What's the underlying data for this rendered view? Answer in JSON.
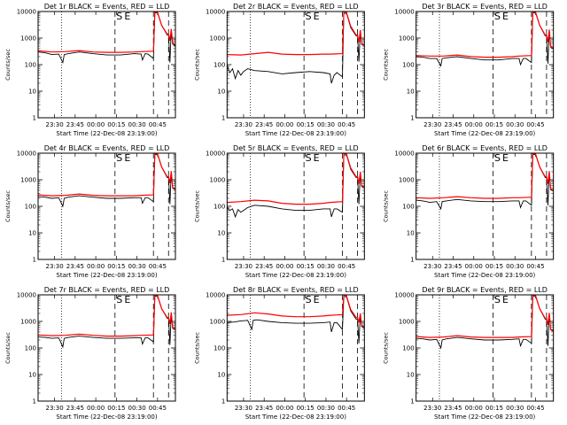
{
  "figure": {
    "y_tick_labels": [
      "1",
      "10",
      "100",
      "1000",
      "10000"
    ],
    "x_tick_labels": [
      "23:30",
      "23:45",
      "00:00",
      "00:15",
      "00:30",
      "00:45"
    ],
    "y_label": "Counts/sec",
    "x_label": "Start Time (22-Dec-08 23:19:00)",
    "markers": [
      "S",
      "E"
    ],
    "colors": {
      "events": "#000000",
      "lld": "#ff0000",
      "axes": "#000000"
    }
  },
  "chart_data": [
    {
      "type": "line",
      "title": "Det 1r BLACK = Events, RED = LLD",
      "x_range_minutes": [
        0,
        100
      ],
      "ylim": [
        1,
        10000
      ],
      "y_scale": "log",
      "series": [
        {
          "name": "Events",
          "x": [
            0,
            5,
            10,
            15,
            18,
            19,
            22,
            30,
            40,
            50,
            60,
            70,
            75,
            76,
            78,
            80,
            84,
            85,
            87,
            90,
            94,
            95,
            96,
            97,
            98,
            99,
            100
          ],
          "y": [
            300,
            280,
            240,
            250,
            120,
            240,
            260,
            300,
            260,
            230,
            230,
            260,
            250,
            150,
            260,
            250,
            170,
            9000,
            9000,
            3000,
            1300,
            1300,
            120,
            2000,
            600,
            550,
            500
          ]
        },
        {
          "name": "LLD",
          "x": [
            0,
            10,
            20,
            30,
            40,
            50,
            60,
            70,
            75,
            84,
            85,
            87,
            90,
            94,
            95,
            96,
            97,
            98,
            100
          ],
          "y": [
            330,
            300,
            310,
            340,
            300,
            290,
            290,
            300,
            310,
            320,
            10000,
            9500,
            3000,
            1400,
            1400,
            800,
            2200,
            650,
            550
          ]
        }
      ]
    },
    {
      "type": "line",
      "title": "Det 2r BLACK = Events, RED = LLD",
      "x_range_minutes": [
        0,
        100
      ],
      "ylim": [
        1,
        10000
      ],
      "y_scale": "log",
      "series": [
        {
          "name": "Events",
          "x": [
            0,
            2,
            4,
            6,
            8,
            10,
            12,
            15,
            20,
            30,
            40,
            50,
            60,
            70,
            75,
            76,
            78,
            80,
            84,
            85,
            87,
            90,
            94,
            95,
            96,
            97,
            98,
            99,
            100
          ],
          "y": [
            90,
            50,
            70,
            30,
            60,
            40,
            55,
            70,
            60,
            55,
            45,
            50,
            55,
            50,
            45,
            20,
            40,
            50,
            35,
            8500,
            8500,
            2500,
            1200,
            1200,
            130,
            1800,
            580,
            550,
            520
          ]
        },
        {
          "name": "LLD",
          "x": [
            0,
            10,
            20,
            30,
            40,
            50,
            60,
            70,
            75,
            84,
            85,
            87,
            90,
            94,
            95,
            96,
            97,
            98,
            100
          ],
          "y": [
            240,
            230,
            260,
            290,
            250,
            240,
            240,
            250,
            250,
            260,
            10000,
            9000,
            2800,
            1300,
            1300,
            700,
            2000,
            620,
            540
          ]
        }
      ]
    },
    {
      "type": "line",
      "title": "Det 3r BLACK = Events, RED = LLD",
      "x_range_minutes": [
        0,
        100
      ],
      "ylim": [
        1,
        10000
      ],
      "y_scale": "log",
      "series": [
        {
          "name": "Events",
          "x": [
            0,
            5,
            10,
            15,
            18,
            19,
            22,
            30,
            40,
            50,
            60,
            70,
            75,
            76,
            78,
            80,
            84,
            85,
            87,
            90,
            94,
            95,
            96,
            97,
            98,
            99,
            100
          ],
          "y": [
            200,
            190,
            170,
            170,
            90,
            170,
            180,
            200,
            170,
            150,
            150,
            170,
            170,
            100,
            170,
            170,
            120,
            9000,
            9000,
            3000,
            1200,
            1200,
            110,
            1900,
            450,
            420,
            400
          ]
        },
        {
          "name": "LLD",
          "x": [
            0,
            10,
            20,
            30,
            40,
            50,
            60,
            70,
            75,
            84,
            85,
            87,
            90,
            94,
            95,
            96,
            97,
            98,
            100
          ],
          "y": [
            220,
            210,
            210,
            230,
            200,
            190,
            190,
            200,
            210,
            220,
            10000,
            9500,
            3000,
            1300,
            1300,
            700,
            2100,
            480,
            420
          ]
        }
      ]
    },
    {
      "type": "line",
      "title": "Det 4r BLACK = Events, RED = LLD",
      "x_range_minutes": [
        0,
        100
      ],
      "ylim": [
        1,
        10000
      ],
      "y_scale": "log",
      "series": [
        {
          "name": "Events",
          "x": [
            0,
            5,
            10,
            15,
            18,
            19,
            22,
            30,
            40,
            50,
            60,
            70,
            75,
            76,
            78,
            80,
            84,
            85,
            87,
            90,
            94,
            95,
            96,
            97,
            98,
            99,
            100
          ],
          "y": [
            230,
            220,
            200,
            210,
            100,
            200,
            220,
            250,
            220,
            200,
            200,
            210,
            210,
            130,
            210,
            210,
            150,
            9000,
            9000,
            3000,
            1200,
            1200,
            120,
            1900,
            480,
            450,
            430
          ]
        },
        {
          "name": "LLD",
          "x": [
            0,
            10,
            20,
            30,
            40,
            50,
            60,
            70,
            75,
            84,
            85,
            87,
            90,
            94,
            95,
            96,
            97,
            98,
            100
          ],
          "y": [
            270,
            250,
            260,
            290,
            260,
            250,
            250,
            250,
            260,
            270,
            10000,
            9500,
            3000,
            1300,
            1300,
            750,
            2100,
            500,
            450
          ]
        }
      ]
    },
    {
      "type": "line",
      "title": "Det 5r BLACK = Events, RED = LLD",
      "x_range_minutes": [
        0,
        100
      ],
      "ylim": [
        1,
        10000
      ],
      "y_scale": "log",
      "series": [
        {
          "name": "Events",
          "x": [
            0,
            2,
            4,
            6,
            8,
            10,
            12,
            15,
            20,
            30,
            40,
            50,
            60,
            70,
            75,
            76,
            78,
            80,
            84,
            85,
            87,
            90,
            94,
            95,
            96,
            97,
            98,
            99,
            100
          ],
          "y": [
            90,
            70,
            80,
            40,
            75,
            60,
            70,
            90,
            110,
            100,
            80,
            70,
            70,
            80,
            80,
            40,
            80,
            80,
            60,
            8500,
            8500,
            2500,
            1200,
            1200,
            120,
            1800,
            560,
            530,
            500
          ]
        },
        {
          "name": "LLD",
          "x": [
            0,
            10,
            20,
            30,
            40,
            50,
            60,
            70,
            75,
            84,
            85,
            87,
            90,
            94,
            95,
            96,
            97,
            98,
            100
          ],
          "y": [
            140,
            150,
            170,
            160,
            130,
            120,
            120,
            130,
            140,
            150,
            10000,
            9000,
            2800,
            1300,
            1300,
            700,
            2000,
            600,
            530
          ]
        }
      ]
    },
    {
      "type": "line",
      "title": "Det 6r BLACK = Events, RED = LLD",
      "x_range_minutes": [
        0,
        100
      ],
      "ylim": [
        1,
        10000
      ],
      "y_scale": "log",
      "series": [
        {
          "name": "Events",
          "x": [
            0,
            5,
            10,
            15,
            18,
            19,
            22,
            30,
            40,
            50,
            60,
            70,
            75,
            76,
            78,
            80,
            84,
            85,
            87,
            90,
            94,
            95,
            96,
            97,
            98,
            99,
            100
          ],
          "y": [
            170,
            160,
            140,
            150,
            80,
            150,
            160,
            180,
            160,
            150,
            150,
            160,
            160,
            90,
            160,
            160,
            110,
            9000,
            9000,
            3000,
            1200,
            1200,
            110,
            1900,
            420,
            400,
            380
          ]
        },
        {
          "name": "LLD",
          "x": [
            0,
            10,
            20,
            30,
            40,
            50,
            60,
            70,
            75,
            84,
            85,
            87,
            90,
            94,
            95,
            96,
            97,
            98,
            100
          ],
          "y": [
            210,
            200,
            210,
            230,
            210,
            200,
            200,
            210,
            210,
            220,
            10000,
            9500,
            3000,
            1300,
            1300,
            700,
            2100,
            450,
            410
          ]
        }
      ]
    },
    {
      "type": "line",
      "title": "Det 7r BLACK = Events, RED = LLD",
      "x_range_minutes": [
        0,
        100
      ],
      "ylim": [
        1,
        10000
      ],
      "y_scale": "log",
      "series": [
        {
          "name": "Events",
          "x": [
            0,
            5,
            10,
            15,
            18,
            19,
            22,
            30,
            40,
            50,
            60,
            70,
            75,
            76,
            78,
            80,
            84,
            85,
            87,
            90,
            94,
            95,
            96,
            97,
            98,
            99,
            100
          ],
          "y": [
            260,
            250,
            230,
            240,
            110,
            230,
            250,
            280,
            250,
            230,
            230,
            240,
            240,
            140,
            240,
            240,
            170,
            9000,
            9000,
            3000,
            1300,
            1300,
            130,
            2000,
            550,
            520,
            500
          ]
        },
        {
          "name": "LLD",
          "x": [
            0,
            10,
            20,
            30,
            40,
            50,
            60,
            70,
            75,
            84,
            85,
            87,
            90,
            94,
            95,
            96,
            97,
            98,
            100
          ],
          "y": [
            310,
            290,
            300,
            330,
            300,
            280,
            280,
            290,
            300,
            310,
            10000,
            9500,
            3000,
            1400,
            1400,
            800,
            2200,
            580,
            520
          ]
        }
      ]
    },
    {
      "type": "line",
      "title": "Det 8r BLACK = Events, RED = LLD",
      "x_range_minutes": [
        0,
        100
      ],
      "ylim": [
        1,
        10000
      ],
      "y_scale": "log",
      "series": [
        {
          "name": "Events",
          "x": [
            0,
            5,
            10,
            15,
            18,
            19,
            22,
            30,
            40,
            50,
            60,
            70,
            75,
            76,
            78,
            80,
            84,
            85,
            87,
            90,
            94,
            95,
            96,
            97,
            98,
            99,
            100
          ],
          "y": [
            900,
            950,
            1050,
            1100,
            500,
            1100,
            1150,
            1000,
            900,
            850,
            850,
            900,
            950,
            400,
            900,
            900,
            500,
            8500,
            8500,
            2500,
            1200,
            1200,
            150,
            1800,
            650,
            600,
            550
          ]
        },
        {
          "name": "LLD",
          "x": [
            0,
            10,
            20,
            30,
            40,
            50,
            60,
            70,
            75,
            84,
            85,
            87,
            90,
            94,
            95,
            96,
            97,
            98,
            100
          ],
          "y": [
            1700,
            1800,
            2100,
            1900,
            1600,
            1500,
            1500,
            1600,
            1700,
            1800,
            10000,
            9000,
            2800,
            1400,
            1400,
            900,
            2000,
            700,
            620
          ]
        }
      ]
    },
    {
      "type": "line",
      "title": "Det 9r BLACK = Events, RED = LLD",
      "x_range_minutes": [
        0,
        100
      ],
      "ylim": [
        1,
        10000
      ],
      "y_scale": "log",
      "series": [
        {
          "name": "Events",
          "x": [
            0,
            5,
            10,
            15,
            18,
            19,
            22,
            30,
            40,
            50,
            60,
            70,
            75,
            76,
            78,
            80,
            84,
            85,
            87,
            90,
            94,
            95,
            96,
            97,
            98,
            99,
            100
          ],
          "y": [
            230,
            220,
            200,
            210,
            100,
            200,
            220,
            250,
            220,
            200,
            200,
            210,
            220,
            120,
            210,
            210,
            150,
            9000,
            9000,
            3000,
            1200,
            1200,
            120,
            1900,
            480,
            450,
            430
          ]
        },
        {
          "name": "LLD",
          "x": [
            0,
            10,
            20,
            30,
            40,
            50,
            60,
            70,
            75,
            84,
            85,
            87,
            90,
            94,
            95,
            96,
            97,
            98,
            100
          ],
          "y": [
            270,
            250,
            260,
            290,
            260,
            250,
            250,
            250,
            260,
            270,
            10000,
            9500,
            3000,
            1300,
            1300,
            750,
            2100,
            500,
            450
          ]
        }
      ]
    }
  ]
}
